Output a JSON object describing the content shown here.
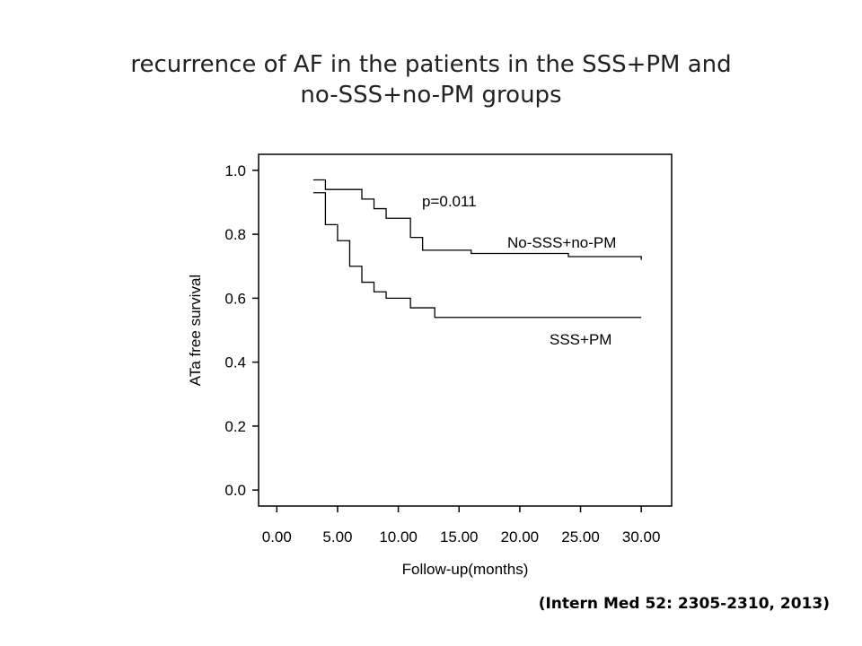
{
  "title": {
    "line1": "recurrence of AF in the patients in the SSS+PM and",
    "line2": "no-SSS+no-PM  groups"
  },
  "citation": "(Intern Med 52: 2305-2310, 2013)",
  "chart_data": {
    "type": "line",
    "subtype": "kaplan-meier-step",
    "xlabel": "Follow-up(months)",
    "ylabel": "ATa free survival",
    "xlim": [
      -1.5,
      32.5
    ],
    "ylim": [
      -0.05,
      1.05
    ],
    "xticks": [
      0,
      5,
      10,
      15,
      20,
      25,
      30
    ],
    "xtick_labels": [
      "0.00",
      "5.00",
      "10.00",
      "15.00",
      "20.00",
      "25.00",
      "30.00"
    ],
    "yticks": [
      0,
      0.2,
      0.4,
      0.6,
      0.8,
      1.0
    ],
    "ytick_labels": [
      "0.0",
      "0.2",
      "0.4",
      "0.6",
      "0.8",
      "1.0"
    ],
    "annotation": "p=0.011",
    "series": [
      {
        "name": "No-SSS+no-PM",
        "x": [
          3,
          4,
          7,
          8,
          9,
          11,
          12,
          16,
          24,
          30
        ],
        "y": [
          0.97,
          0.94,
          0.91,
          0.88,
          0.85,
          0.79,
          0.75,
          0.74,
          0.73,
          0.72
        ]
      },
      {
        "name": "SSS+PM",
        "x": [
          3,
          4,
          5,
          6,
          7,
          8,
          9,
          11,
          13,
          30
        ],
        "y": [
          0.93,
          0.83,
          0.78,
          0.7,
          0.65,
          0.62,
          0.6,
          0.57,
          0.54,
          0.54
        ]
      }
    ]
  }
}
